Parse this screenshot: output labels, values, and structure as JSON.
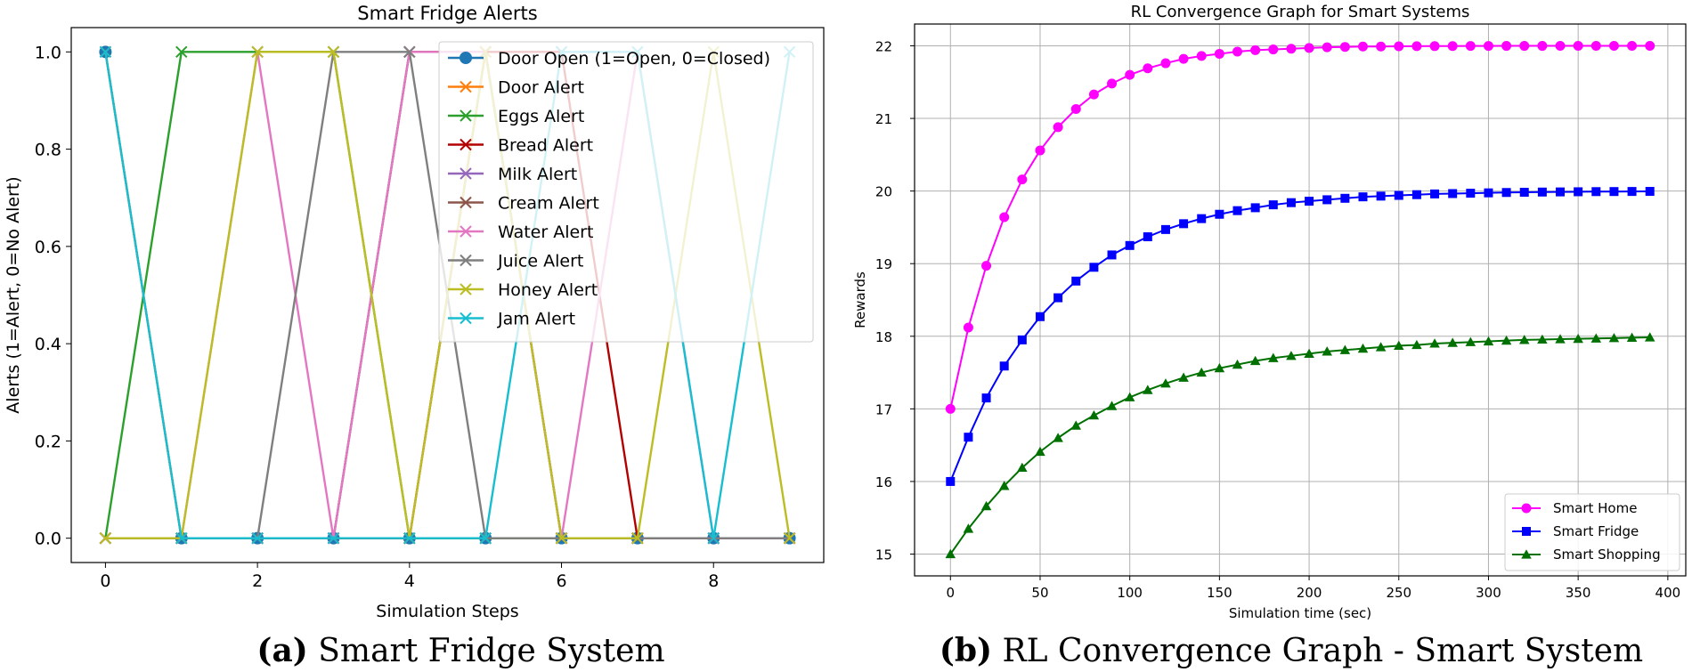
{
  "chart_data": [
    {
      "type": "line",
      "title": "Smart Fridge Alerts",
      "xlabel": "Simulation Steps",
      "ylabel": "Alerts (1=Alert, 0=No Alert)",
      "xlim": [
        -0.45,
        9.45
      ],
      "ylim": [
        -0.05,
        1.05
      ],
      "xticks": [
        0,
        2,
        4,
        6,
        8
      ],
      "yticks": [
        0.0,
        0.2,
        0.4,
        0.6,
        0.8,
        1.0
      ],
      "grid": false,
      "legend_position": "top-right",
      "x": [
        0,
        1,
        2,
        3,
        4,
        5,
        6,
        7,
        8,
        9
      ],
      "series": [
        {
          "name": "Door Open (1=Open, 0=Closed)",
          "color": "#1f77b4",
          "marker": "circle",
          "values": [
            1,
            0,
            0,
            0,
            0,
            0,
            0,
            0,
            0,
            0
          ]
        },
        {
          "name": "Door Alert",
          "color": "#ff7f0e",
          "marker": "x",
          "values": [
            1,
            0,
            0,
            0,
            0,
            0,
            0,
            0,
            0,
            0
          ]
        },
        {
          "name": "Eggs Alert",
          "color": "#2ca02c",
          "marker": "x",
          "values": [
            0,
            1,
            1,
            1,
            0,
            0,
            0,
            0,
            0,
            0
          ]
        },
        {
          "name": "Bread Alert",
          "color": "#b30000",
          "marker": "x",
          "values": [
            0,
            0,
            0,
            0,
            0,
            1,
            1,
            0,
            0,
            0
          ]
        },
        {
          "name": "Milk Alert",
          "color": "#9467bd",
          "marker": "x",
          "values": [
            0,
            0,
            0,
            0,
            1,
            1,
            0,
            0,
            0,
            0
          ]
        },
        {
          "name": "Cream Alert",
          "color": "#8c564b",
          "marker": "x",
          "values": [
            0,
            0,
            0,
            0,
            1,
            1,
            0,
            0,
            0,
            0
          ]
        },
        {
          "name": "Water Alert",
          "color": "#e377c2",
          "marker": "x",
          "values": [
            0,
            0,
            1,
            0,
            1,
            1,
            0,
            1,
            0,
            0
          ]
        },
        {
          "name": "Juice Alert",
          "color": "#7f7f7f",
          "marker": "x",
          "values": [
            0,
            0,
            0,
            1,
            1,
            0,
            0,
            0,
            0,
            0
          ]
        },
        {
          "name": "Honey Alert",
          "color": "#bcbd22",
          "marker": "x",
          "values": [
            0,
            0,
            1,
            1,
            0,
            1,
            0,
            0,
            1,
            0
          ]
        },
        {
          "name": "Jam Alert",
          "color": "#17becf",
          "marker": "x",
          "values": [
            1,
            0,
            0,
            0,
            0,
            0,
            1,
            1,
            0,
            1
          ]
        }
      ],
      "caption_label": "(a)",
      "caption_text": " Smart Fridge System"
    },
    {
      "type": "line",
      "title": "RL Convergence Graph for Smart Systems",
      "xlabel": "Simulation time (sec)",
      "ylabel": "Rewards",
      "xlim": [
        -20,
        410
      ],
      "ylim": [
        14.7,
        22.3
      ],
      "xticks": [
        0,
        50,
        100,
        150,
        200,
        250,
        300,
        350,
        400
      ],
      "yticks": [
        15,
        16,
        17,
        18,
        19,
        20,
        21,
        22
      ],
      "grid": true,
      "legend_position": "bottom-right",
      "x_start": 0,
      "x_step": 10,
      "series": [
        {
          "name": "Smart Home",
          "color": "#ff00ff",
          "marker": "circle",
          "values": [
            17.0,
            18.12,
            18.97,
            19.64,
            20.16,
            20.56,
            20.88,
            21.13,
            21.33,
            21.48,
            21.6,
            21.69,
            21.76,
            21.82,
            21.86,
            21.89,
            21.92,
            21.94,
            21.95,
            21.96,
            21.97,
            21.98,
            21.985,
            21.99,
            21.99,
            21.993,
            21.995,
            21.996,
            21.997,
            21.998,
            21.998,
            21.999,
            21.999,
            21.999,
            22.0,
            22.0,
            22.0,
            22.0,
            22.0,
            22.0
          ]
        },
        {
          "name": "Smart Fridge",
          "color": "#0000ff",
          "marker": "square",
          "values": [
            16.0,
            16.61,
            17.15,
            17.59,
            17.95,
            18.27,
            18.53,
            18.76,
            18.95,
            19.12,
            19.25,
            19.37,
            19.47,
            19.55,
            19.62,
            19.68,
            19.73,
            19.77,
            19.81,
            19.84,
            19.86,
            19.88,
            19.9,
            19.92,
            19.93,
            19.94,
            19.95,
            19.96,
            19.965,
            19.97,
            19.975,
            19.98,
            19.983,
            19.986,
            19.988,
            19.99,
            19.992,
            19.993,
            19.994,
            19.995
          ]
        },
        {
          "name": "Smart Shopping",
          "color": "#007000",
          "marker": "triangle",
          "values": [
            15.0,
            15.35,
            15.66,
            15.94,
            16.19,
            16.41,
            16.6,
            16.77,
            16.91,
            17.04,
            17.16,
            17.26,
            17.35,
            17.43,
            17.5,
            17.56,
            17.61,
            17.66,
            17.7,
            17.73,
            17.76,
            17.79,
            17.81,
            17.83,
            17.85,
            17.87,
            17.88,
            17.9,
            17.91,
            17.92,
            17.93,
            17.94,
            17.95,
            17.955,
            17.96,
            17.965,
            17.97,
            17.975,
            17.98,
            17.985
          ]
        }
      ],
      "caption_label": "(b)",
      "caption_text": " RL Convergence Graph - Smart System"
    }
  ]
}
